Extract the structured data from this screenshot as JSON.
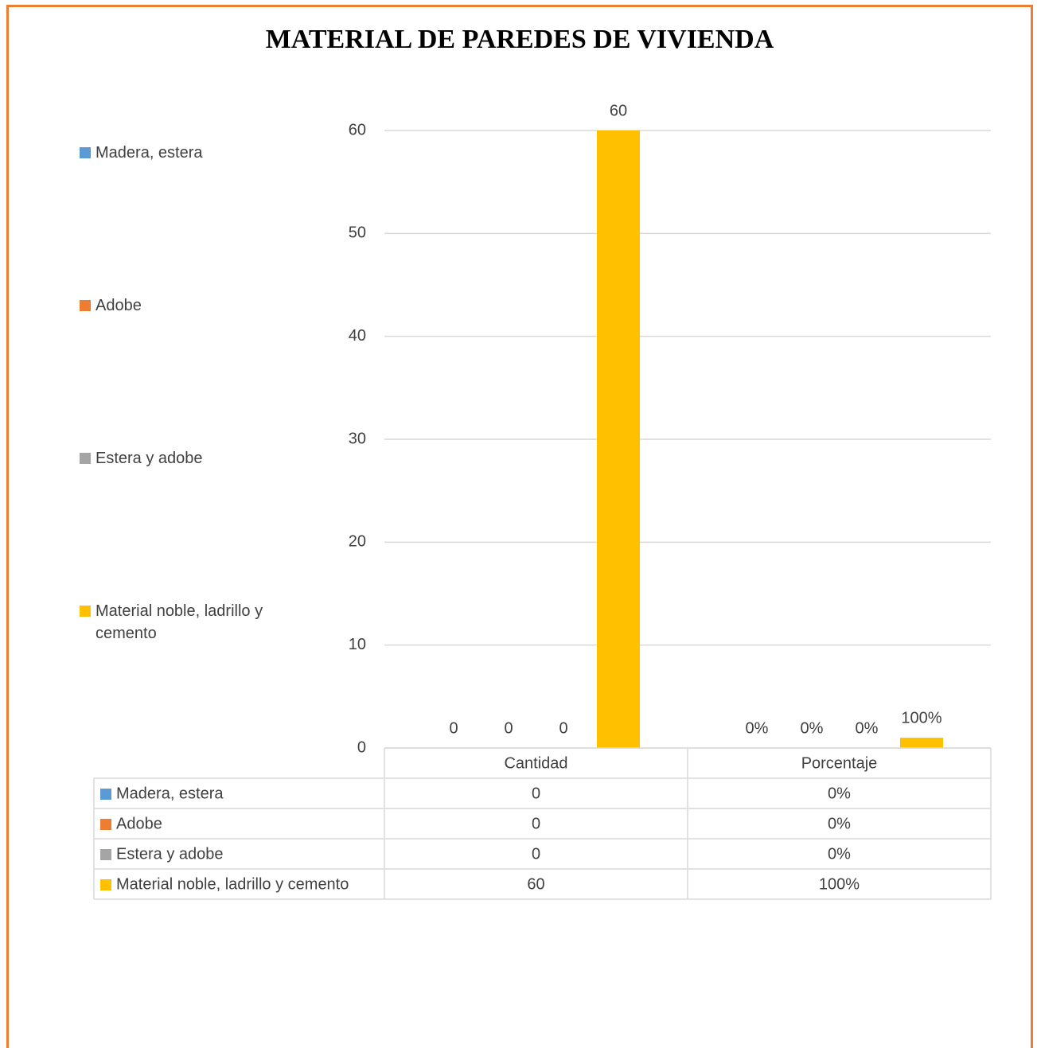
{
  "chart_data": {
    "type": "bar",
    "title": "MATERIAL DE PAREDES DE VIVIENDA",
    "categories": [
      "Cantidad",
      "Porcentaje"
    ],
    "series": [
      {
        "name": "Madera, estera",
        "color": "#5b9bd5",
        "values": [
          0,
          0
        ],
        "value_labels": [
          "0",
          "0%"
        ]
      },
      {
        "name": "Adobe",
        "color": "#ed7d31",
        "values": [
          0,
          0
        ],
        "value_labels": [
          "0",
          "0%"
        ]
      },
      {
        "name": "Estera y adobe",
        "color": "#a5a5a5",
        "values": [
          0,
          0
        ],
        "value_labels": [
          "0",
          "0%"
        ]
      },
      {
        "name": "Material noble, ladrillo y cemento",
        "color": "#ffc000",
        "values": [
          60,
          1
        ],
        "value_labels": [
          "60",
          "100%"
        ]
      }
    ],
    "ylim": [
      0,
      60
    ],
    "yticks": [
      0,
      10,
      20,
      30,
      40,
      50,
      60
    ],
    "grid": true,
    "legend": "left",
    "data_table": true
  }
}
